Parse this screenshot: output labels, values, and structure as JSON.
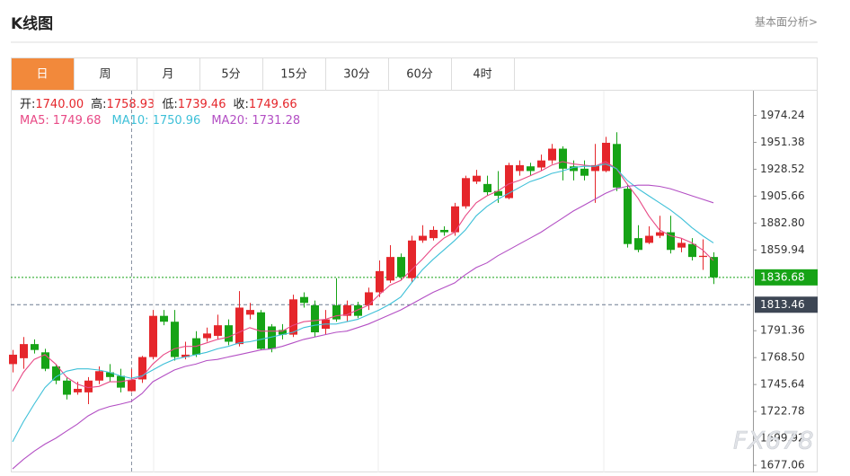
{
  "header": {
    "title": "K线图",
    "link": "基本面分析>"
  },
  "tabs": [
    "日",
    "周",
    "月",
    "5分",
    "15分",
    "30分",
    "60分",
    "4时"
  ],
  "info": {
    "ohlc": [
      {
        "label": "开:",
        "value": "1740.00"
      },
      {
        "label": "高:",
        "value": "1758.93"
      },
      {
        "label": "低:",
        "value": "1739.46"
      },
      {
        "label": "收:",
        "value": "1749.66"
      }
    ],
    "ma": [
      {
        "label": "MA5:",
        "value": "1749.68"
      },
      {
        "label": "MA10:",
        "value": "1750.96"
      },
      {
        "label": "MA20:",
        "value": "1731.28"
      }
    ]
  },
  "watermark": "FX678",
  "chart_data": {
    "type": "candlestick",
    "categories": [
      null,
      null,
      null,
      null,
      null,
      null,
      null,
      null,
      null,
      null,
      null,
      null,
      null,
      null,
      null,
      null,
      null,
      null,
      null,
      null,
      null,
      null,
      null,
      null,
      null,
      null,
      null,
      null,
      null,
      null,
      null,
      null,
      null,
      null,
      null,
      null,
      null,
      null,
      null,
      null,
      null,
      null,
      null,
      null,
      null,
      null,
      null,
      null,
      null,
      null,
      null,
      null,
      null,
      null,
      null,
      null,
      null,
      null,
      null,
      null,
      null,
      null,
      null,
      null,
      null,
      null
    ],
    "open": [
      1763,
      1768,
      1780,
      1773,
      1761,
      1749,
      1739,
      1739,
      1749,
      1756,
      1753,
      1740,
      1750,
      1769,
      1804,
      1799,
      1769,
      1785,
      1785,
      1787,
      1796,
      1780,
      1805,
      1807,
      1795,
      1792,
      1788,
      1820,
      1813,
      1793,
      1813,
      1804,
      1813,
      1813,
      1824,
      1834,
      1854,
      1836,
      1868,
      1870,
      1877,
      1875,
      1897,
      1918,
      1916,
      1910,
      1904,
      1927,
      1931,
      1930,
      1936,
      1946,
      1931,
      1929,
      1927,
      1927,
      1950,
      1912,
      1870,
      1866,
      1872,
      1875,
      1862,
      1865,
      1854,
      1854
    ],
    "high": [
      1775,
      1786,
      1784,
      1776,
      1763,
      1752,
      1748,
      1752,
      1761,
      1763,
      1759,
      1758.93,
      1770,
      1809,
      1809,
      1809,
      1782,
      1791,
      1794,
      1805,
      1801,
      1825,
      1815,
      1809,
      1797,
      1797,
      1822,
      1824,
      1817,
      1809,
      1836,
      1817,
      1816,
      1828,
      1851,
      1864,
      1857,
      1872,
      1881,
      1880,
      1880,
      1900,
      1923,
      1928,
      1923,
      1927,
      1934,
      1936,
      1934,
      1941,
      1950,
      1948,
      1936,
      1936,
      1950,
      1956,
      1960,
      1916,
      1881,
      1880,
      1889,
      1889,
      1870,
      1870,
      1869,
      1858
    ],
    "low": [
      1756,
      1759,
      1772,
      1757,
      1746,
      1733,
      1737,
      1729,
      1746,
      1748,
      1739,
      1739.46,
      1747,
      1767,
      1796,
      1766,
      1767,
      1769,
      1782,
      1784,
      1779,
      1778,
      1801,
      1775,
      1773,
      1784,
      1786,
      1811,
      1786,
      1788,
      1799,
      1799,
      1802,
      1809,
      1820,
      1832,
      1834,
      1832,
      1866,
      1868,
      1872,
      1872,
      1895,
      1916,
      1906,
      1900,
      1903,
      1923,
      1923,
      1927,
      1933,
      1919,
      1919,
      1919,
      1900,
      1926,
      1910,
      1862,
      1858,
      1865,
      1870,
      1857,
      1858,
      1851,
      1843,
      1831
    ],
    "close": [
      1771,
      1780,
      1775,
      1759,
      1749,
      1737,
      1742,
      1749,
      1757,
      1752,
      1743,
      1749.66,
      1769,
      1804,
      1799,
      1769,
      1771,
      1771,
      1789,
      1796,
      1782,
      1811,
      1809,
      1776,
      1776,
      1788,
      1818,
      1815,
      1790,
      1801,
      1801,
      1813,
      1804,
      1824,
      1842,
      1854,
      1837,
      1868,
      1872,
      1877,
      1875,
      1897,
      1921,
      1923,
      1909,
      1906,
      1932,
      1932,
      1927,
      1936,
      1946,
      1929,
      1927,
      1923,
      1932,
      1951,
      1913,
      1865,
      1860,
      1872,
      1875,
      1860,
      1866,
      1854,
      1855,
      1836.68
    ],
    "up_color": "#e5262b",
    "down_color": "#16a316",
    "series": [
      {
        "color": "#e84a86",
        "values": [
          1740,
          1756,
          1767,
          1771,
          1763,
          1752,
          1746,
          1743,
          1744,
          1748,
          1748,
          1749.68,
          1752,
          1763,
          1771,
          1776,
          1778,
          1778,
          1781,
          1784,
          1786,
          1790,
          1794,
          1791,
          1791,
          1791,
          1796,
          1799,
          1800,
          1801,
          1804,
          1805,
          1809,
          1813,
          1822,
          1830,
          1834,
          1843,
          1852,
          1862,
          1870,
          1875,
          1889,
          1900,
          1906,
          1910,
          1916,
          1919,
          1923,
          1927,
          1932,
          1935,
          1933,
          1932,
          1931,
          1935,
          1929,
          1916,
          1904,
          1889,
          1877,
          1872,
          1870,
          1866,
          1860,
          1851
        ]
      },
      {
        "color": "#3ec0d8",
        "values": [
          1697,
          1714,
          1729,
          1743,
          1752,
          1757,
          1759,
          1759,
          1758,
          1756,
          1753,
          1750.96,
          1753,
          1758,
          1763,
          1767,
          1769,
          1771,
          1773,
          1776,
          1778,
          1781,
          1782,
          1784,
          1786,
          1788,
          1790,
          1794,
          1796,
          1797,
          1797,
          1799,
          1801,
          1805,
          1809,
          1814,
          1820,
          1832,
          1843,
          1852,
          1860,
          1868,
          1877,
          1889,
          1897,
          1903,
          1908,
          1913,
          1918,
          1921,
          1925,
          1927,
          1930,
          1931,
          1931,
          1933,
          1929,
          1919,
          1912,
          1906,
          1900,
          1894,
          1887,
          1879,
          1872,
          1866
        ]
      },
      {
        "color": "#b34fc4",
        "values": [
          1674,
          1682,
          1689,
          1695,
          1700,
          1706,
          1712,
          1719,
          1724,
          1727,
          1729,
          1731.28,
          1738,
          1748,
          1753,
          1758,
          1761,
          1763,
          1766,
          1767,
          1769,
          1771,
          1773,
          1775,
          1776,
          1778,
          1781,
          1784,
          1786,
          1788,
          1790,
          1791,
          1794,
          1797,
          1801,
          1805,
          1809,
          1814,
          1819,
          1824,
          1828,
          1832,
          1839,
          1845,
          1849,
          1855,
          1860,
          1865,
          1870,
          1875,
          1881,
          1887,
          1893,
          1898,
          1903,
          1908,
          1912,
          1914,
          1915,
          1915,
          1914,
          1912,
          1909,
          1906,
          1903,
          1900
        ]
      }
    ],
    "ylim": [
      1671,
      1996
    ],
    "yticks": [
      1974.24,
      1951.38,
      1928.52,
      1905.66,
      {
        "value": 1882.8,
        "label": "1882.80"
      },
      1859.94,
      1791.36,
      {
        "value": 1768.5,
        "label": "1768.50"
      },
      1745.64,
      1722.78,
      1699.92,
      1677.06
    ],
    "price_line": 1836.68,
    "price_line_color": "#16a316",
    "crosshair_value": 1813.46
  }
}
